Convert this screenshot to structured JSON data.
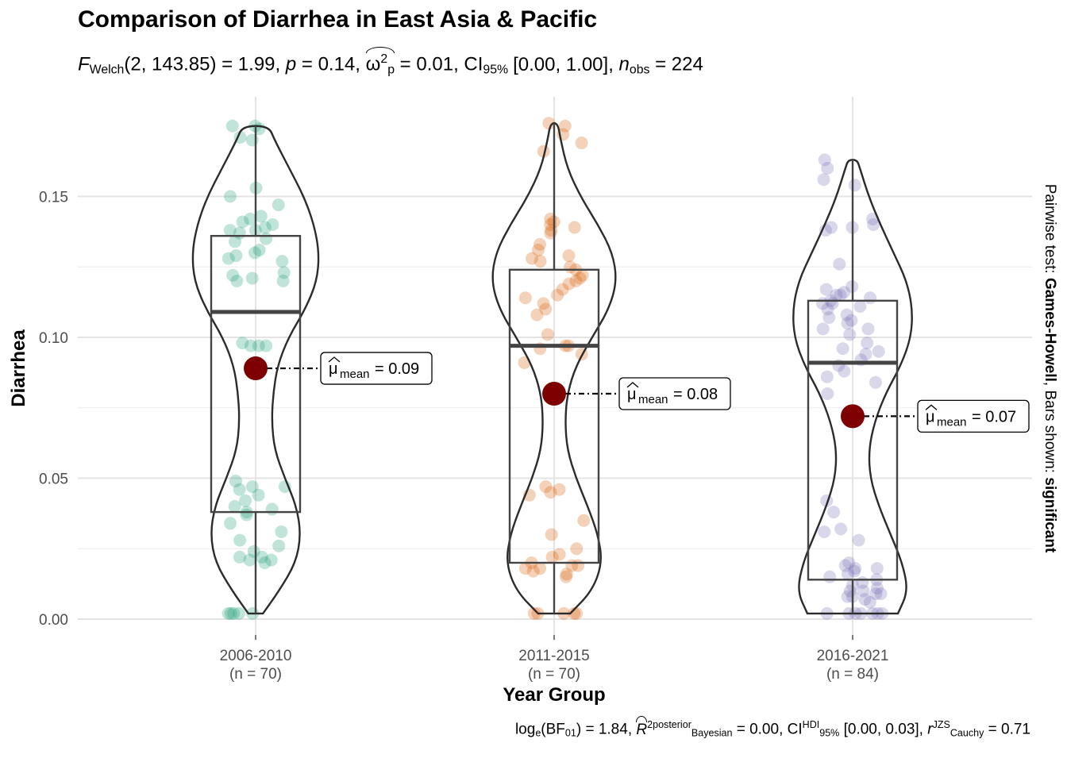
{
  "title": "Comparison of Diarrhea in East Asia & Pacific",
  "subtitle": {
    "stat_symbol": "F",
    "stat_sub": "Welch",
    "stat_args": "(2, 143.85) = 1.99, ",
    "p_symbol": "p",
    "p_text": " = 0.14, ",
    "effect_symbol": "ω",
    "effect_sup": "2",
    "effect_sub": "p",
    "effect_text": " = 0.01, CI",
    "ci_sub": "95%",
    "ci_text": "[0.00, 1.00], ",
    "n_symbol": "n",
    "n_sub": "obs",
    "n_text": " = 224"
  },
  "side_caption": {
    "prefix": "Pairwise test: ",
    "method": "Games-Howell",
    "middle": ", Bars shown: ",
    "shown": "significant"
  },
  "bottom_caption": {
    "log_text": "log",
    "log_sub": "e",
    "bf_text": "(BF",
    "bf_sub": "01",
    "bf_value": ") = 1.84, ",
    "r_symbol": "R",
    "r_sup": "2",
    "r_sup2": "posterior",
    "r_sub": "Bayesian",
    "r_value": " = 0.00, CI",
    "ci_sup": "HDI",
    "ci_sub": "95%",
    "ci_value": " [0.00, 0.03], ",
    "rc_symbol": "r",
    "rc_sup": "JZS",
    "rc_sub": "Cauchy",
    "rc_value": " = 0.71"
  },
  "chart_data": {
    "type": "violin-box",
    "title": "Comparison of Diarrhea in East Asia & Pacific",
    "xlabel": "Year Group",
    "ylabel": "Diarrhea",
    "ylim": [
      0,
      0.175
    ],
    "y_ticks": [
      0.0,
      0.05,
      0.1,
      0.15
    ],
    "y_tick_labels": [
      "0.00",
      "0.05",
      "0.10",
      "0.15"
    ],
    "grid": true,
    "mean_color": "#7f0000",
    "groups": [
      {
        "name": "2006-2010",
        "n_label": "(n = 70)",
        "color": "#1b9e77",
        "box": {
          "q1": 0.038,
          "median": 0.109,
          "q3": 0.136,
          "whisker_low": 0.002,
          "whisker_high": 0.175
        },
        "mean": 0.089,
        "mean_label": "= 0.09",
        "points": [
          0.175,
          0.174,
          0.175,
          0.171,
          0.17,
          0.153,
          0.15,
          0.147,
          0.143,
          0.142,
          0.141,
          0.14,
          0.139,
          0.138,
          0.138,
          0.137,
          0.135,
          0.134,
          0.131,
          0.13,
          0.129,
          0.128,
          0.127,
          0.123,
          0.122,
          0.121,
          0.12,
          0.12,
          0.097,
          0.097,
          0.097,
          0.098,
          0.049,
          0.047,
          0.047,
          0.046,
          0.044,
          0.042,
          0.04,
          0.039,
          0.038,
          0.037,
          0.034,
          0.031,
          0.028,
          0.026,
          0.024,
          0.022,
          0.022,
          0.021,
          0.021,
          0.02,
          0.002,
          0.002,
          0.002,
          0.002,
          0.002
        ],
        "violin": [
          [
            0.002,
            0.1
          ],
          [
            0.01,
            0.32
          ],
          [
            0.02,
            0.55
          ],
          [
            0.03,
            0.62
          ],
          [
            0.04,
            0.56
          ],
          [
            0.05,
            0.4
          ],
          [
            0.06,
            0.26
          ],
          [
            0.07,
            0.22
          ],
          [
            0.08,
            0.24
          ],
          [
            0.09,
            0.3
          ],
          [
            0.1,
            0.45
          ],
          [
            0.11,
            0.68
          ],
          [
            0.12,
            0.84
          ],
          [
            0.13,
            0.87
          ],
          [
            0.14,
            0.8
          ],
          [
            0.15,
            0.66
          ],
          [
            0.16,
            0.46
          ],
          [
            0.17,
            0.26
          ],
          [
            0.175,
            0.18
          ]
        ]
      },
      {
        "name": "2011-2015",
        "n_label": "(n = 70)",
        "color": "#d95f02",
        "box": {
          "q1": 0.02,
          "median": 0.097,
          "q3": 0.124,
          "whisker_low": 0.002,
          "whisker_high": 0.176
        },
        "mean": 0.08,
        "mean_label": "= 0.08",
        "points": [
          0.176,
          0.175,
          0.172,
          0.169,
          0.166,
          0.142,
          0.141,
          0.14,
          0.139,
          0.138,
          0.137,
          0.133,
          0.131,
          0.129,
          0.128,
          0.127,
          0.125,
          0.124,
          0.122,
          0.121,
          0.12,
          0.119,
          0.117,
          0.115,
          0.114,
          0.112,
          0.11,
          0.108,
          0.101,
          0.097,
          0.097,
          0.096,
          0.094,
          0.091,
          0.047,
          0.046,
          0.045,
          0.044,
          0.035,
          0.03,
          0.025,
          0.023,
          0.022,
          0.02,
          0.019,
          0.019,
          0.018,
          0.018,
          0.017,
          0.016,
          0.015,
          0.002,
          0.002,
          0.002,
          0.002,
          0.002
        ],
        "violin": [
          [
            0.002,
            0.22
          ],
          [
            0.01,
            0.52
          ],
          [
            0.02,
            0.66
          ],
          [
            0.03,
            0.6
          ],
          [
            0.04,
            0.46
          ],
          [
            0.05,
            0.3
          ],
          [
            0.06,
            0.18
          ],
          [
            0.07,
            0.15
          ],
          [
            0.08,
            0.18
          ],
          [
            0.09,
            0.3
          ],
          [
            0.1,
            0.52
          ],
          [
            0.11,
            0.75
          ],
          [
            0.12,
            0.86
          ],
          [
            0.13,
            0.8
          ],
          [
            0.14,
            0.6
          ],
          [
            0.15,
            0.36
          ],
          [
            0.16,
            0.18
          ],
          [
            0.17,
            0.09
          ],
          [
            0.176,
            0.05
          ]
        ]
      },
      {
        "name": "2016-2021",
        "n_label": "(n = 84)",
        "color": "#7570b3",
        "box": {
          "q1": 0.014,
          "median": 0.091,
          "q3": 0.113,
          "whisker_low": 0.002,
          "whisker_high": 0.163
        },
        "mean": 0.072,
        "mean_label": "= 0.07",
        "points": [
          0.163,
          0.16,
          0.156,
          0.154,
          0.142,
          0.14,
          0.139,
          0.139,
          0.138,
          0.126,
          0.118,
          0.117,
          0.116,
          0.115,
          0.115,
          0.114,
          0.113,
          0.112,
          0.112,
          0.111,
          0.11,
          0.108,
          0.107,
          0.106,
          0.105,
          0.103,
          0.103,
          0.101,
          0.098,
          0.096,
          0.095,
          0.094,
          0.092,
          0.09,
          0.088,
          0.086,
          0.084,
          0.08,
          0.042,
          0.038,
          0.032,
          0.031,
          0.028,
          0.02,
          0.019,
          0.018,
          0.018,
          0.017,
          0.016,
          0.015,
          0.014,
          0.013,
          0.012,
          0.011,
          0.01,
          0.01,
          0.009,
          0.009,
          0.008,
          0.008,
          0.007,
          0.006,
          0.002,
          0.002,
          0.002,
          0.002,
          0.002,
          0.002,
          0.002
        ],
        "violin": [
          [
            0.002,
            0.62
          ],
          [
            0.01,
            0.76
          ],
          [
            0.02,
            0.68
          ],
          [
            0.03,
            0.52
          ],
          [
            0.04,
            0.36
          ],
          [
            0.05,
            0.24
          ],
          [
            0.06,
            0.22
          ],
          [
            0.07,
            0.3
          ],
          [
            0.08,
            0.45
          ],
          [
            0.09,
            0.66
          ],
          [
            0.1,
            0.8
          ],
          [
            0.11,
            0.82
          ],
          [
            0.12,
            0.74
          ],
          [
            0.13,
            0.56
          ],
          [
            0.14,
            0.38
          ],
          [
            0.15,
            0.22
          ],
          [
            0.16,
            0.1
          ],
          [
            0.163,
            0.06
          ]
        ]
      }
    ]
  }
}
